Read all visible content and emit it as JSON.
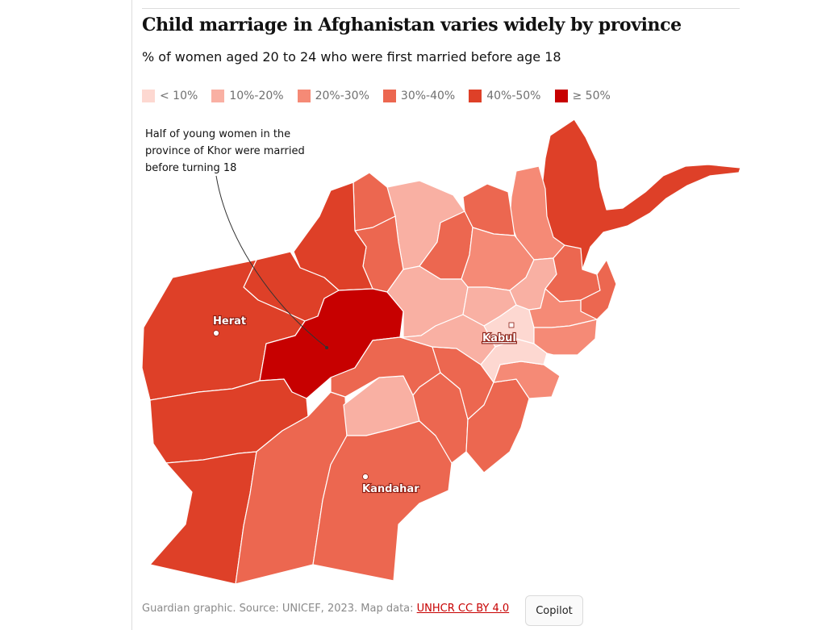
{
  "title": "Child marriage in Afghanistan varies widely by province",
  "subtitle": "% of women aged 20 to 24 who were first married before age 18",
  "legend": [
    {
      "label": "< 10%",
      "color": "#fdd8d1"
    },
    {
      "label": "10%-20%",
      "color": "#f9b0a3"
    },
    {
      "label": "20%-30%",
      "color": "#f58a76"
    },
    {
      "label": "30%-40%",
      "color": "#ec6750"
    },
    {
      "label": "40%-50%",
      "color": "#de4028"
    },
    {
      "label": "≥ 50%",
      "color": "#c70000"
    }
  ],
  "annotation": {
    "text": "Half of young women in the province of Khor were married before turning 18"
  },
  "cities": {
    "herat": "Herat",
    "kabul": "Kabul",
    "kandahar": "Kandahar"
  },
  "footer": {
    "source": "Guardian graphic. Source: UNICEF, 2023. Map data: ",
    "link": "UNHCR CC BY 4.0"
  },
  "copilot_label": "Copilot"
}
